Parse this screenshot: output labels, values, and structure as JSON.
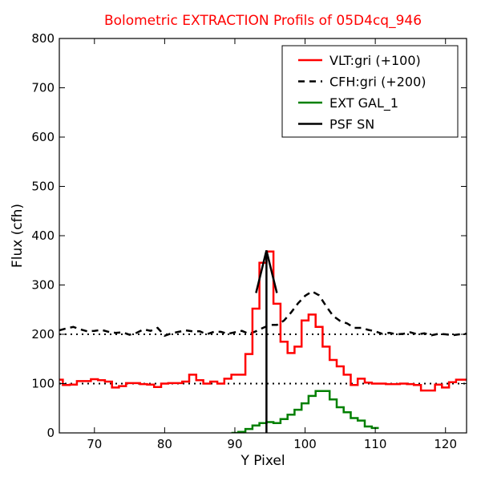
{
  "chart_data": {
    "type": "line",
    "title": "Bolometric EXTRACTION Profils of 05D4cq_946",
    "xlabel": "Y Pixel",
    "ylabel": "Flux (cfh)",
    "xlim": [
      65,
      123
    ],
    "ylim": [
      0,
      800
    ],
    "xticks": [
      70,
      80,
      90,
      100,
      110,
      120
    ],
    "yticks": [
      0,
      100,
      200,
      300,
      400,
      500,
      600,
      700,
      800
    ],
    "legend_position": "top-right",
    "colors": {
      "title": "#ff0000",
      "vlt": "#ff0000",
      "cfh": "#000000",
      "ext": "#008000",
      "psf": "#000000"
    },
    "reference_lines": [
      100,
      200
    ],
    "series": [
      {
        "name": "VLT:gri (+100)",
        "style": "steps",
        "x": [
          65,
          66,
          67,
          68,
          69,
          70,
          71,
          72,
          73,
          74,
          75,
          76,
          77,
          78,
          79,
          80,
          81,
          82,
          83,
          84,
          85,
          86,
          87,
          88,
          89,
          90,
          91,
          92,
          93,
          94,
          95,
          96,
          97,
          98,
          99,
          100,
          101,
          102,
          103,
          104,
          105,
          106,
          107,
          108,
          109,
          110,
          111,
          112,
          113,
          114,
          115,
          116,
          117,
          118,
          119,
          120,
          121,
          122,
          123
        ],
        "y": [
          108,
          97,
          98,
          105,
          105,
          109,
          107,
          104,
          92,
          95,
          101,
          101,
          99,
          98,
          93,
          100,
          101,
          101,
          104,
          118,
          107,
          100,
          104,
          100,
          110,
          118,
          118,
          160,
          252,
          345,
          368,
          262,
          185,
          162,
          175,
          228,
          240,
          215,
          175,
          148,
          135,
          118,
          97,
          110,
          102,
          100,
          100,
          99,
          99,
          100,
          99,
          97,
          86,
          86,
          98,
          92,
          103,
          108,
          108
        ]
      },
      {
        "name": "CFH:gri (+200)",
        "style": "dashed",
        "x": [
          65,
          66,
          67,
          68,
          69,
          70,
          71,
          72,
          73,
          74,
          75,
          76,
          77,
          78,
          79,
          80,
          81,
          82,
          83,
          84,
          85,
          86,
          87,
          88,
          89,
          90,
          91,
          92,
          93,
          94,
          95,
          96,
          97,
          98,
          99,
          100,
          101,
          102,
          103,
          104,
          105,
          106,
          107,
          108,
          109,
          110,
          111,
          112,
          113,
          114,
          115,
          116,
          117,
          118,
          119,
          120,
          121,
          122,
          123
        ],
        "y": [
          208,
          212,
          215,
          210,
          206,
          207,
          209,
          205,
          203,
          204,
          199,
          203,
          210,
          207,
          213,
          197,
          202,
          205,
          208,
          206,
          206,
          200,
          205,
          205,
          201,
          204,
          207,
          201,
          206,
          213,
          219,
          219,
          228,
          244,
          263,
          278,
          287,
          279,
          257,
          237,
          227,
          222,
          213,
          213,
          209,
          206,
          201,
          203,
          200,
          201,
          204,
          200,
          202,
          198,
          201,
          200,
          198,
          200,
          201
        ]
      },
      {
        "name": "EXT GAL_1",
        "style": "steps",
        "x": [
          90,
          91,
          92,
          93,
          94,
          95,
          96,
          97,
          98,
          99,
          100,
          101,
          102,
          103,
          104,
          105,
          106,
          107,
          108,
          109,
          110
        ],
        "y": [
          0,
          2,
          8,
          15,
          20,
          22,
          20,
          28,
          37,
          47,
          60,
          75,
          85,
          85,
          68,
          52,
          42,
          30,
          25,
          13,
          10
        ]
      },
      {
        "name": "PSF SN",
        "style": "arrow",
        "x": [
          94.5,
          94.5
        ],
        "y": [
          0,
          370
        ]
      }
    ]
  }
}
